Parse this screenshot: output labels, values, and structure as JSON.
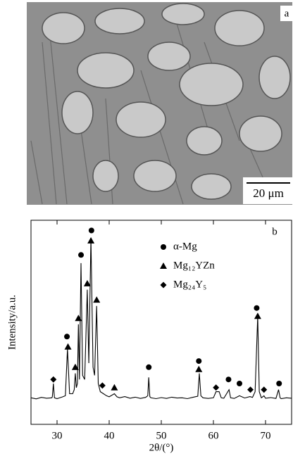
{
  "micrograph": {
    "label": "a",
    "scale_bar": "20 μm"
  },
  "chart_data": {
    "type": "line",
    "panel_label": "b",
    "x_label": "2θ/(°)",
    "y_label": "Intensity/a.u.",
    "xlim": [
      25,
      75
    ],
    "xticks": [
      30,
      40,
      50,
      60,
      70
    ],
    "ylim": [
      0,
      100
    ],
    "line": {
      "color": "#000000",
      "x": [
        25,
        26,
        27,
        28,
        29,
        29.1,
        29.3,
        29.5,
        30,
        31,
        31.6,
        32,
        32.4,
        33,
        33.3,
        33.5,
        33.7,
        33.9,
        34.1,
        34.3,
        34.6,
        34.9,
        35.3,
        35.8,
        36.1,
        36.5,
        36.9,
        37.2,
        37.6,
        37.9,
        38.3,
        38.9,
        39.5,
        40,
        41,
        41.5,
        42,
        43,
        44,
        45,
        46,
        47,
        47.4,
        47.6,
        47.8,
        48,
        49,
        50,
        51,
        52,
        53,
        54,
        55,
        56,
        57,
        57.3,
        57.6,
        58,
        59,
        60,
        60.5,
        61.1,
        61.5,
        62,
        63,
        63.3,
        64,
        65,
        66,
        67,
        67.5,
        68,
        68.5,
        68.8,
        69.2,
        69.7,
        70,
        71,
        72,
        72.5,
        72.8,
        73,
        74,
        75
      ],
      "values": [
        13,
        12.5,
        13.2,
        12.8,
        13,
        13.5,
        20,
        13,
        12.6,
        13.4,
        14,
        37,
        15,
        15,
        17,
        25,
        18,
        20,
        49,
        22,
        79,
        24,
        22,
        66,
        30,
        91,
        28,
        24,
        58,
        20,
        16,
        15,
        14,
        13.5,
        15,
        13.5,
        13,
        13.6,
        12.8,
        13.3,
        12.7,
        13.2,
        14,
        23,
        13.6,
        13,
        12.6,
        13.1,
        12.7,
        13.3,
        12.9,
        13,
        12.6,
        13.2,
        13.8,
        25,
        14,
        13,
        12.7,
        13,
        16,
        16,
        13,
        12.8,
        17,
        13,
        12.7,
        14,
        12.9,
        13.6,
        13.2,
        16,
        53,
        16,
        13,
        14,
        12.8,
        13.1,
        12.7,
        17,
        13,
        12.6,
        13,
        12.8
      ]
    },
    "series": [
      {
        "name": "α-Mg",
        "marker": "circle",
        "color": "#000000",
        "x": [
          31.9,
          34.6,
          36.6,
          47.6,
          57.2,
          62.9,
          65,
          68.3,
          72.6
        ],
        "values": [
          43,
          83,
          95,
          28,
          31,
          22,
          20,
          57,
          20
        ]
      },
      {
        "name": "Mg₁₂YZn",
        "marker": "triangle",
        "color": "#000000",
        "x": [
          32.1,
          33.5,
          34.1,
          35.8,
          36.5,
          37.6,
          41,
          57.2,
          68.5
        ],
        "values": [
          38,
          28,
          52,
          69,
          90,
          61,
          18,
          27,
          53
        ]
      },
      {
        "name": "Mg₂₄Y₅",
        "marker": "diamond",
        "color": "#000000",
        "x": [
          29.3,
          38.7,
          60.5,
          67.1,
          69.7
        ],
        "values": [
          22,
          19,
          18,
          17,
          17
        ]
      }
    ]
  }
}
